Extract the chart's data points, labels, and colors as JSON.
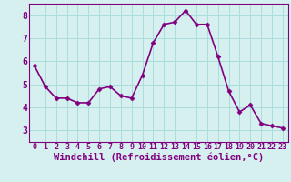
{
  "x": [
    0,
    1,
    2,
    3,
    4,
    5,
    6,
    7,
    8,
    9,
    10,
    11,
    12,
    13,
    14,
    15,
    16,
    17,
    18,
    19,
    20,
    21,
    22,
    23
  ],
  "y": [
    5.8,
    4.9,
    4.4,
    4.4,
    4.2,
    4.2,
    4.8,
    4.9,
    4.5,
    4.4,
    5.4,
    6.8,
    7.6,
    7.7,
    8.2,
    7.6,
    7.6,
    6.2,
    4.7,
    3.8,
    4.1,
    3.3,
    3.2,
    3.1
  ],
  "line_color": "#800080",
  "marker": "D",
  "marker_size": 2.5,
  "bg_color": "#d6f0f0",
  "grid_color": "#aadddd",
  "xlabel": "Windchill (Refroidissement éolien,°C)",
  "xlabel_fontsize": 7.5,
  "xlim": [
    -0.5,
    23.5
  ],
  "ylim": [
    2.5,
    8.5
  ],
  "yticks": [
    3,
    4,
    5,
    6,
    7,
    8
  ],
  "xticks": [
    0,
    1,
    2,
    3,
    4,
    5,
    6,
    7,
    8,
    9,
    10,
    11,
    12,
    13,
    14,
    15,
    16,
    17,
    18,
    19,
    20,
    21,
    22,
    23
  ],
  "tick_fontsize": 6,
  "line_width": 1.2,
  "spine_color": "#800080"
}
